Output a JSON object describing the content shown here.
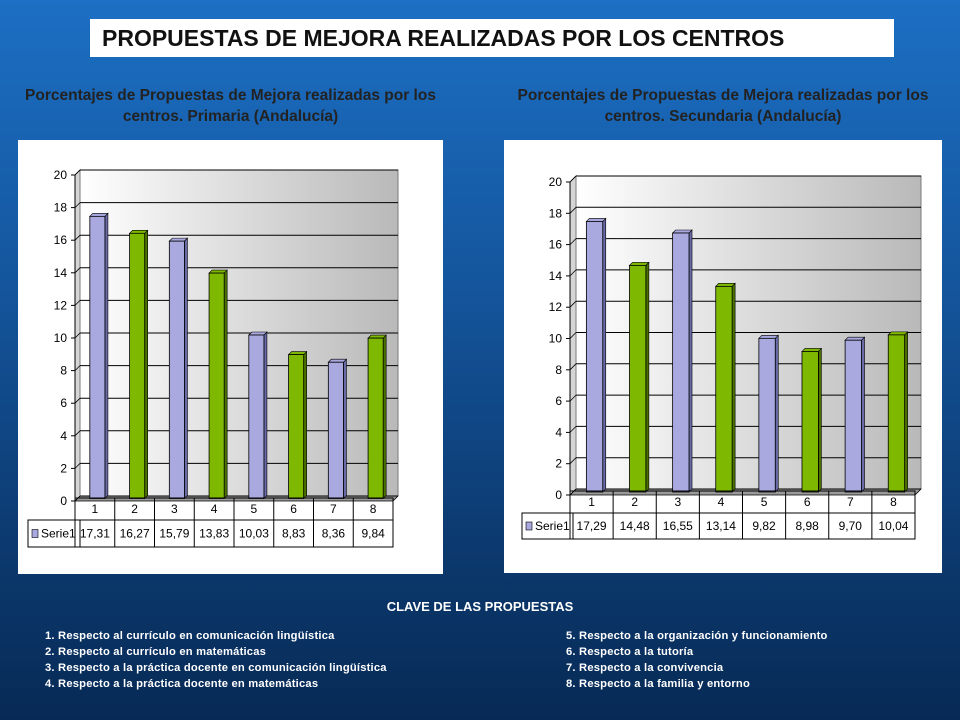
{
  "page_title": "PROPUESTAS DE MEJORA REALIZADAS POR LOS CENTROS",
  "chart_data": [
    {
      "type": "bar",
      "title": "Porcentajes de Propuestas de Mejora realizadas por los centros. Primaria (Andalucía)",
      "categories": [
        "1",
        "2",
        "3",
        "4",
        "5",
        "6",
        "7",
        "8"
      ],
      "series": [
        {
          "name": "Serie1",
          "values": [
            17.31,
            16.27,
            15.79,
            13.83,
            10.03,
            8.83,
            8.36,
            9.84
          ]
        }
      ],
      "value_labels": [
        "17,31",
        "16,27",
        "15,79",
        "13,83",
        "10,03",
        "8,83",
        "8,36",
        "9,84"
      ],
      "ylim": [
        0,
        20
      ],
      "yticks": [
        0,
        2,
        4,
        6,
        8,
        10,
        12,
        14,
        16,
        18,
        20
      ],
      "grid": true,
      "legend": "data table below chart",
      "bar_colors": [
        "#a9a9e0",
        "#7fb800",
        "#a9a9e0",
        "#7fb800",
        "#a9a9e0",
        "#7fb800",
        "#a9a9e0",
        "#7fb800"
      ],
      "header_color": "#1ef8a8"
    },
    {
      "type": "bar",
      "title": "Porcentajes de Propuestas de Mejora realizadas por los centros. Secundaria (Andalucía)",
      "categories": [
        "1",
        "2",
        "3",
        "4",
        "5",
        "6",
        "7",
        "8"
      ],
      "series": [
        {
          "name": "Serie1",
          "values": [
            17.29,
            14.48,
            16.55,
            13.14,
            9.82,
            8.98,
            9.7,
            10.04
          ]
        }
      ],
      "value_labels": [
        "17,29",
        "14,48",
        "16,55",
        "13,14",
        "9,82",
        "8,98",
        "9,70",
        "10,04"
      ],
      "ylim": [
        0,
        20
      ],
      "yticks": [
        0,
        2,
        4,
        6,
        8,
        10,
        12,
        14,
        16,
        18,
        20
      ],
      "grid": true,
      "legend": "data table below chart",
      "bar_colors": [
        "#a9a9e0",
        "#7fb800",
        "#a9a9e0",
        "#7fb800",
        "#a9a9e0",
        "#7fb800",
        "#a9a9e0",
        "#7fb800"
      ],
      "header_color": "#fdcf6e"
    }
  ],
  "key": {
    "title": "CLAVE DE LAS PROPUESTAS",
    "left": [
      "1. Respecto al currículo en comunicación lingüística",
      "2. Respecto al currículo en matemáticas",
      "3. Respecto a la práctica docente en comunicación lingüística",
      "4. Respecto a la práctica docente en matemáticas"
    ],
    "right": [
      "5. Respecto a la organización y funcionamiento",
      "6. Respecto a la tutoría",
      "7. Respecto a la convivencia",
      "8. Respecto a la familia y entorno"
    ]
  }
}
